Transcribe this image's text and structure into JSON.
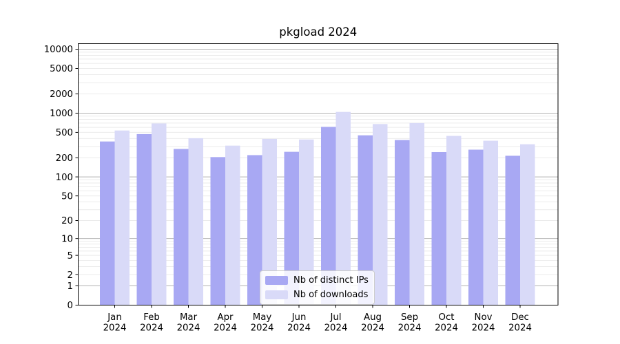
{
  "chart_data": {
    "type": "bar",
    "title": "pkgload 2024",
    "categories": [
      "Jan",
      "Feb",
      "Mar",
      "Apr",
      "May",
      "Jun",
      "Jul",
      "Aug",
      "Sep",
      "Oct",
      "Nov",
      "Dec"
    ],
    "category_year": "2024",
    "series": [
      {
        "name": "Nb of distinct IPs",
        "color": "#a8a8f3",
        "values": [
          360,
          470,
          275,
          205,
          220,
          248,
          610,
          450,
          380,
          246,
          268,
          215
        ]
      },
      {
        "name": "Nb of downloads",
        "color": "#d9daf8",
        "values": [
          535,
          690,
          405,
          310,
          395,
          387,
          1045,
          675,
          700,
          440,
          370,
          326
        ]
      }
    ],
    "yscale": "log1p",
    "ylim": [
      0,
      12000
    ],
    "yticks": [
      0,
      1,
      2,
      5,
      10,
      20,
      50,
      100,
      200,
      500,
      1000,
      2000,
      5000,
      10000
    ],
    "major_grid_values": [
      1,
      10,
      100,
      1000,
      10000
    ],
    "grid": "both",
    "legend_position": "lower center",
    "colors": {
      "major_grid": "#b1b1b1",
      "minor_grid": "#ebebeb",
      "axis": "#000000",
      "text": "#000000",
      "background": "#ffffff"
    }
  }
}
